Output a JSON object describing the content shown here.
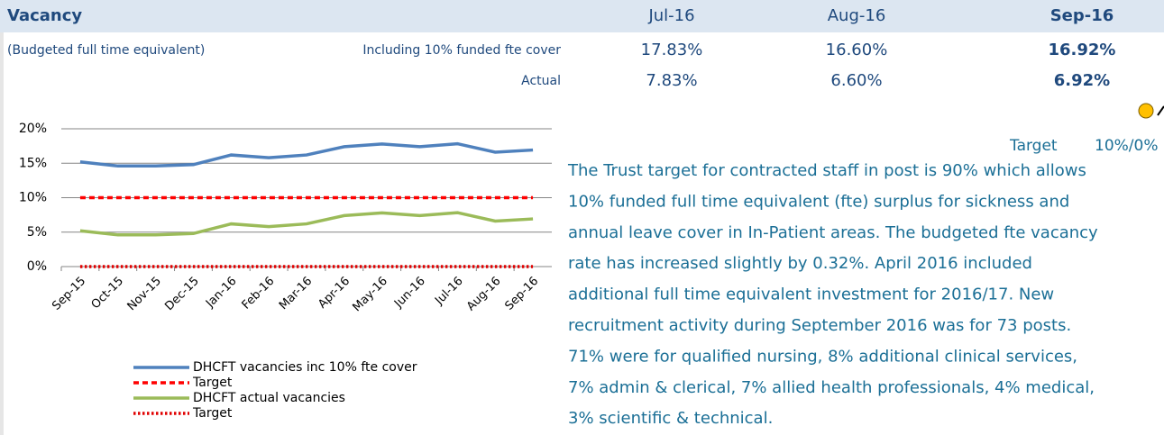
{
  "header": {
    "title": "Vacancy",
    "months": [
      "Jul-16",
      "Aug-16",
      "Sep-16"
    ]
  },
  "table": {
    "rows": [
      {
        "label": "(Budgeted full time equivalent)",
        "measure": "Including 10% funded fte cover",
        "values": [
          "17.83%",
          "16.60%",
          "16.92%"
        ]
      },
      {
        "measure": "Actual",
        "values": [
          "7.83%",
          "6.60%",
          "6.92%"
        ]
      }
    ]
  },
  "status": {
    "target_label": "Target",
    "target_value": "10%/0%"
  },
  "commentary": [
    "The Trust target for contracted staff in post is 90% which allows",
    "10% funded full time equivalent (fte) surplus for sickness and",
    "annual leave cover in In-Patient areas.  The budgeted fte vacancy",
    "rate has increased slightly by 0.32%.  April 2016 included",
    "additional full time equivalent investment for 2016/17.  New",
    "recruitment activity during September 2016 was for 73 posts.",
    "71% were for qualified nursing, 8% additional clinical services,",
    "7% admin & clerical, 7% allied health professionals, 4% medical,",
    "3% scientific & technical."
  ],
  "chart_data": {
    "type": "line",
    "categories": [
      "Sep-15",
      "Oct-15",
      "Nov-15",
      "Dec-15",
      "Jan-16",
      "Feb-16",
      "Mar-16",
      "Apr-16",
      "May-16",
      "Jun-16",
      "Jul-16",
      "Aug-16",
      "Sep-16"
    ],
    "series": [
      {
        "name": "DHCFT vacancies inc 10% fte cover",
        "color": "#4f81bd",
        "dash": "solid",
        "values": [
          15.2,
          14.6,
          14.6,
          14.8,
          16.2,
          15.8,
          16.2,
          17.4,
          17.8,
          17.4,
          17.83,
          16.6,
          16.92
        ]
      },
      {
        "name": "Target",
        "color": "#ff0000",
        "dash": "dashed",
        "values": [
          10,
          10,
          10,
          10,
          10,
          10,
          10,
          10,
          10,
          10,
          10,
          10,
          10
        ]
      },
      {
        "name": "DHCFT actual vacancies",
        "color": "#9bbb59",
        "dash": "solid",
        "values": [
          5.2,
          4.6,
          4.6,
          4.8,
          6.2,
          5.8,
          6.2,
          7.4,
          7.8,
          7.4,
          7.83,
          6.6,
          6.92
        ]
      },
      {
        "name": "Target",
        "color": "#e00000",
        "dash": "dotted",
        "values": [
          0,
          0,
          0,
          0,
          0,
          0,
          0,
          0,
          0,
          0,
          0,
          0,
          0
        ]
      }
    ],
    "ylim": [
      0,
      20
    ],
    "yticks": [
      {
        "value": 0,
        "label": "0%"
      },
      {
        "value": 5,
        "label": "5%"
      },
      {
        "value": 10,
        "label": "10%"
      },
      {
        "value": 15,
        "label": "15%"
      },
      {
        "value": 20,
        "label": "20%"
      }
    ],
    "grid": true
  }
}
